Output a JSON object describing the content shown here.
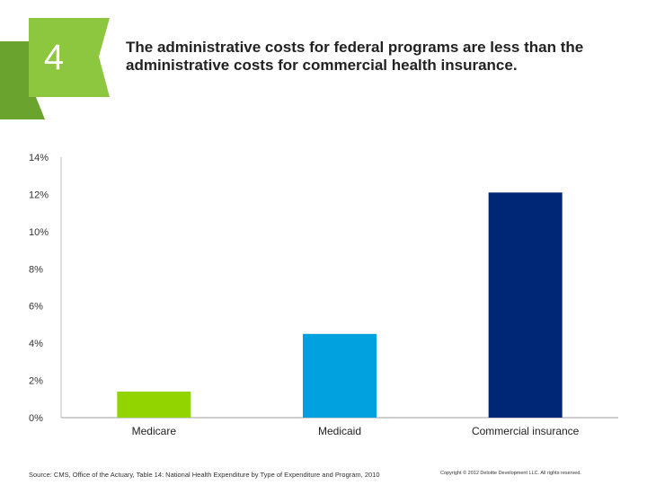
{
  "slide": {
    "number": "4",
    "title": "The administrative costs for federal programs are less than the administrative costs for commercial health insurance.",
    "source": "Source: CMS, Office of the Actuary, Table 14: National Health Expenditure by Type of Expenditure and Program, 2010",
    "copyright": "Copyright © 2012 Deloitte Development LLC. All rights reserved."
  },
  "colors": {
    "badge_dark": "#6aa42f",
    "badge_light": "#8dc63f",
    "axis": "#bfbfbf",
    "medicare": "#92d400",
    "medicaid": "#00a1de",
    "commercial": "#002776"
  },
  "chart_data": {
    "type": "bar",
    "title": "",
    "xlabel": "",
    "ylabel": "",
    "categories": [
      "Medicare",
      "Medicaid",
      "Commercial insurance"
    ],
    "values": [
      1.4,
      4.5,
      12.1
    ],
    "bar_colors": [
      "#92d400",
      "#00a1de",
      "#002776"
    ],
    "ylim": [
      0,
      14
    ],
    "yticks": [
      0,
      2,
      4,
      6,
      8,
      10,
      12,
      14
    ],
    "ytick_labels": [
      "0%",
      "2%",
      "4%",
      "6%",
      "8%",
      "10%",
      "12%",
      "14%"
    ],
    "grid": false,
    "legend": "none"
  }
}
